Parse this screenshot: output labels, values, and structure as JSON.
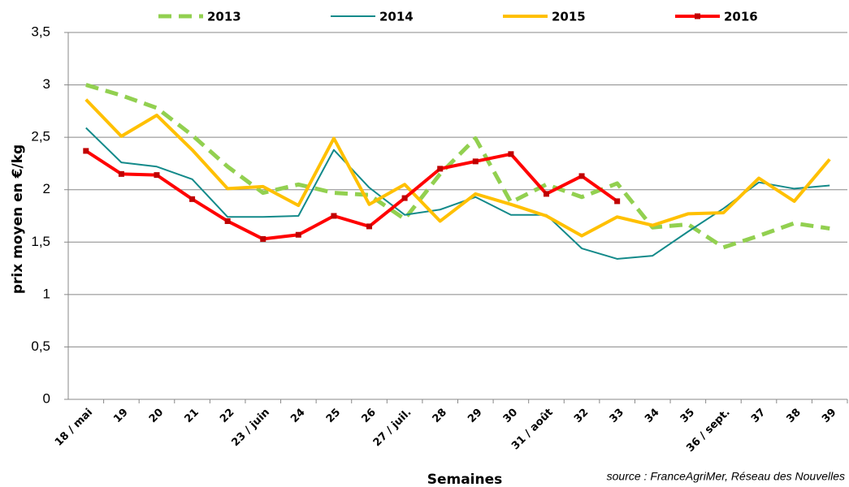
{
  "chart_data": {
    "type": "line",
    "y_label": "prix moyen en €/kg",
    "x_label": "Semaines",
    "source": "source : FranceAgriMer, Réseau des Nouvelles",
    "categories": [
      "18 / mai",
      "19",
      "20",
      "21",
      "22",
      "23 / juin",
      "24",
      "25",
      "26",
      "27 / juil.",
      "28",
      "29",
      "30",
      "31 / août",
      "32",
      "33",
      "34",
      "35",
      "36 / sept.",
      "37",
      "38",
      "39"
    ],
    "series": [
      {
        "name": "2013",
        "color": "#92d050",
        "dash": true,
        "width": 5,
        "values": [
          3.0,
          2.9,
          2.78,
          2.52,
          2.22,
          1.97,
          2.05,
          1.97,
          1.95,
          1.72,
          2.15,
          2.49,
          1.88,
          2.05,
          1.93,
          2.06,
          1.64,
          1.67,
          1.45,
          1.56,
          1.68,
          1.63
        ]
      },
      {
        "name": "2014",
        "color": "#138a8a",
        "width": 2,
        "values": [
          2.59,
          2.26,
          2.22,
          2.1,
          1.74,
          1.74,
          1.75,
          2.38,
          2.02,
          1.76,
          1.81,
          1.93,
          1.76,
          1.76,
          1.44,
          1.34,
          1.37,
          1.6,
          1.82,
          2.07,
          2.01,
          2.04
        ]
      },
      {
        "name": "2015",
        "color": "#ffc000",
        "width": 4,
        "values": [
          2.86,
          2.51,
          2.71,
          2.38,
          2.01,
          2.03,
          1.85,
          2.49,
          1.86,
          2.05,
          1.7,
          1.96,
          1.86,
          1.75,
          1.56,
          1.74,
          1.66,
          1.77,
          1.78,
          2.11,
          1.89,
          2.29
        ]
      },
      {
        "name": "2016",
        "color": "#ff0000",
        "width": 4,
        "marker": "square",
        "values": [
          2.37,
          2.15,
          2.14,
          1.91,
          1.7,
          1.53,
          1.57,
          1.75,
          1.65,
          1.92,
          2.2,
          2.27,
          2.34,
          1.96,
          2.13,
          1.89,
          null,
          null,
          null,
          null,
          null,
          null
        ]
      }
    ],
    "ylim": [
      0,
      3.5
    ],
    "yticks": [
      0,
      {
        "value": 0.5,
        "label": "0,5"
      },
      1,
      {
        "value": 1.5,
        "label": "1,5"
      },
      2,
      {
        "value": 2.5,
        "label": "2,5"
      },
      3,
      {
        "value": 3.5,
        "label": "3,5"
      }
    ],
    "grid": true,
    "legend": "top"
  }
}
